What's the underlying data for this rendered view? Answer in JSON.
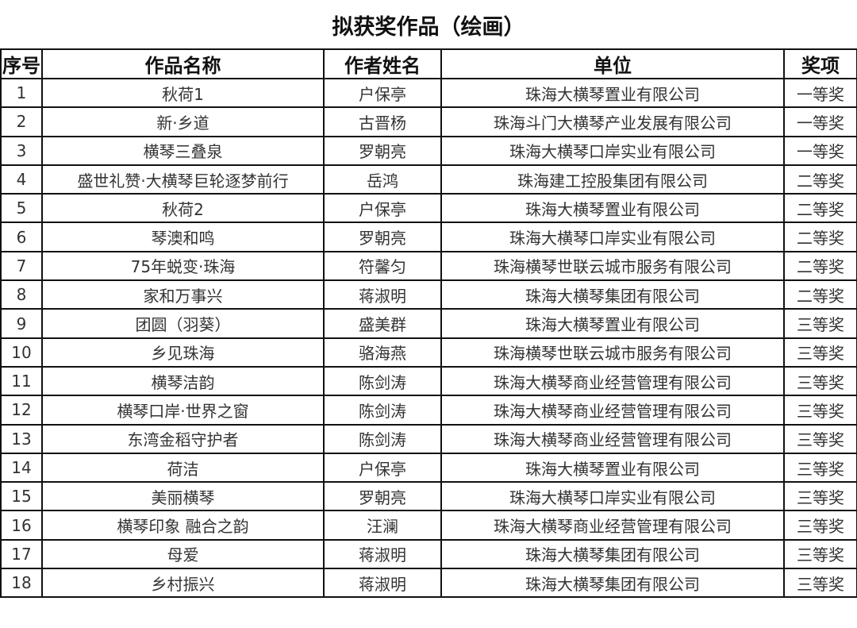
{
  "title": "拟获奖作品（绘画）",
  "columns": [
    "序号",
    "作品名称",
    "作者姓名",
    "单位",
    "奖项"
  ],
  "rows": [
    [
      "1",
      "秋荷1",
      "户保亭",
      "珠海大横琴置业有限公司",
      "一等奖"
    ],
    [
      "2",
      "新·乡道",
      "古晋杨",
      "珠海斗门大横琴产业发展有限公司",
      "一等奖"
    ],
    [
      "3",
      "横琴三叠泉",
      "罗朝亮",
      "珠海大横琴口岸实业有限公司",
      "一等奖"
    ],
    [
      "4",
      "盛世礼赞·大横琴巨轮逐梦前行",
      "岳鸿",
      "珠海建工控股集团有限公司",
      "二等奖"
    ],
    [
      "5",
      "秋荷2",
      "户保亭",
      "珠海大横琴置业有限公司",
      "二等奖"
    ],
    [
      "6",
      "琴澳和鸣",
      "罗朝亮",
      "珠海大横琴口岸实业有限公司",
      "二等奖"
    ],
    [
      "7",
      "75年蜕变·珠海",
      "符馨匀",
      "珠海横琴世联云城市服务有限公司",
      "二等奖"
    ],
    [
      "8",
      "家和万事兴",
      "蒋淑明",
      "珠海大横琴集团有限公司",
      "二等奖"
    ],
    [
      "9",
      "团圆（羽葵）",
      "盛美群",
      "珠海大横琴置业有限公司",
      "三等奖"
    ],
    [
      "10",
      "乡见珠海",
      "骆海燕",
      "珠海横琴世联云城市服务有限公司",
      "三等奖"
    ],
    [
      "11",
      "横琴洁韵",
      "陈剑涛",
      "珠海大横琴商业经营管理有限公司",
      "三等奖"
    ],
    [
      "12",
      "横琴口岸·世界之窗",
      "陈剑涛",
      "珠海大横琴商业经营管理有限公司",
      "三等奖"
    ],
    [
      "13",
      "东湾金稻守护者",
      "陈剑涛",
      "珠海大横琴商业经营管理有限公司",
      "三等奖"
    ],
    [
      "14",
      "荷洁",
      "户保亭",
      "珠海大横琴置业有限公司",
      "三等奖"
    ],
    [
      "15",
      "美丽横琴",
      "罗朝亮",
      "珠海大横琴口岸实业有限公司",
      "三等奖"
    ],
    [
      "16",
      "横琴印象 融合之韵",
      "汪澜",
      "珠海大横琴商业经营管理有限公司",
      "三等奖"
    ],
    [
      "17",
      "母爱",
      "蒋淑明",
      "珠海大横琴集团有限公司",
      "三等奖"
    ],
    [
      "18",
      "乡村振兴",
      "蒋淑明",
      "珠海大横琴集团有限公司",
      "三等奖"
    ]
  ]
}
